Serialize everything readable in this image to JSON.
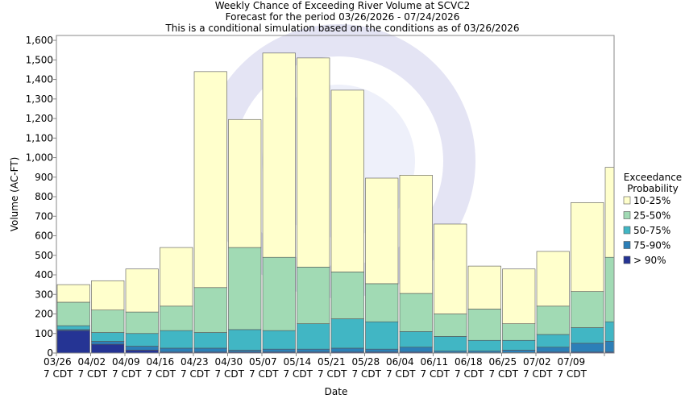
{
  "chart_data": {
    "type": "stacked_bar",
    "title": "Weekly Chance of Exceeding River Volume at SCVC2",
    "subtitle": "Forecast for the period 03/26/2026 - 07/24/2026",
    "note": "This is a conditional simulation based on the conditions as of 03/26/2026",
    "y_label": "Volume (AC-FT)",
    "x_label": "Date",
    "legend_title": "Exceedance\nProbability",
    "categories": [
      "03/26\n7 CDT",
      "04/02\n7 CDT",
      "04/09\n7 CDT",
      "04/16\n7 CDT",
      "04/23\n7 CDT",
      "04/30\n7 CDT",
      "05/07\n7 CDT",
      "05/14\n7 CDT",
      "05/21\n7 CDT",
      "05/28\n7 CDT",
      "06/04\n7 CDT",
      "06/11\n7 CDT",
      "06/18\n7 CDT",
      "06/25\n7 CDT",
      "07/02\n7 CDT",
      "07/09\n7 CDT",
      null
    ],
    "series": [
      {
        "name": "> 90%",
        "color": "#253494",
        "values": [
          115,
          45,
          15,
          5,
          5,
          5,
          5,
          5,
          5,
          5,
          5,
          2,
          2,
          2,
          5,
          5,
          5
        ]
      },
      {
        "name": "75-90%",
        "color": "#2c7fb8",
        "values": [
          5,
          15,
          20,
          20,
          20,
          10,
          15,
          15,
          20,
          15,
          25,
          8,
          8,
          13,
          25,
          45,
          55
        ]
      },
      {
        "name": "50-75%",
        "color": "#41b6c4",
        "values": [
          20,
          45,
          65,
          90,
          80,
          105,
          95,
          130,
          150,
          140,
          80,
          75,
          55,
          50,
          65,
          80,
          100
        ]
      },
      {
        "name": "25-50%",
        "color": "#a1dab4",
        "values": [
          120,
          115,
          110,
          125,
          230,
          420,
          375,
          290,
          240,
          195,
          195,
          115,
          160,
          85,
          145,
          185,
          330
        ]
      },
      {
        "name": "10-25%",
        "color": "#ffffcc",
        "values": [
          90,
          150,
          220,
          300,
          1105,
          655,
          1045,
          1070,
          930,
          540,
          605,
          460,
          220,
          280,
          280,
          455,
          460
        ]
      }
    ],
    "ylim": [
      0,
      1625
    ],
    "yticks": [
      0,
      100,
      200,
      300,
      400,
      500,
      600,
      700,
      800,
      900,
      {
        "value": 1000,
        "label": "1,000"
      },
      {
        "value": 1100,
        "label": "1,100"
      },
      {
        "value": 1200,
        "label": "1,200"
      },
      {
        "value": 1300,
        "label": "1,300"
      },
      {
        "value": 1400,
        "label": "1,400"
      },
      {
        "value": 1500,
        "label": "1,500"
      },
      {
        "value": 1600,
        "label": "1,600"
      }
    ],
    "legend": "right"
  }
}
